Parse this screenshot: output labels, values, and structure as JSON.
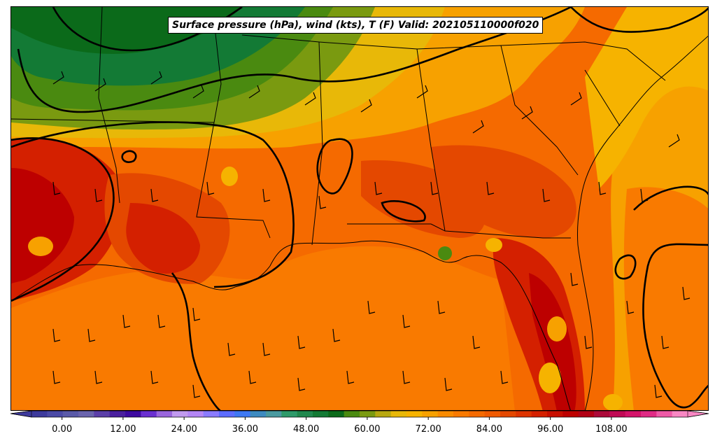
{
  "title": "Surface pressure (hPa), wind (kts), T (F) Valid: 202105110000f020",
  "colorbar": {
    "min": -6,
    "max": 123,
    "extend": "both",
    "ticks": [
      "0.00",
      "12.00",
      "24.00",
      "36.00",
      "48.00",
      "60.00",
      "72.00",
      "84.00",
      "96.00",
      "108.00"
    ],
    "tick_values": [
      0,
      12,
      24,
      36,
      48,
      60,
      72,
      84,
      96,
      108
    ],
    "colors": [
      "#3d3a9c",
      "#4b4aa6",
      "#5a5aa8",
      "#6a64ad",
      "#5b3fa8",
      "#4a1f9e",
      "#3e0aa0",
      "#6a2fd0",
      "#9a66dd",
      "#c19aef",
      "#b486f5",
      "#8a7bff",
      "#5c6cff",
      "#3e78f2",
      "#3d8ac0",
      "#4a9aa0",
      "#2e9a6a",
      "#20884e",
      "#137a35",
      "#0b6a1a",
      "#4a8a10",
      "#7a9a10",
      "#b8a810",
      "#e8b808",
      "#f6b300",
      "#f7a100",
      "#fa8b00",
      "#f97a00",
      "#f56a00",
      "#f05a00",
      "#e44800",
      "#de3400",
      "#d42000",
      "#c80e00",
      "#bd0000",
      "#b20015",
      "#ac0a3a",
      "#c00a55",
      "#d4146a",
      "#e02a85",
      "#ee5aa7",
      "#f887c3"
    ]
  }
}
